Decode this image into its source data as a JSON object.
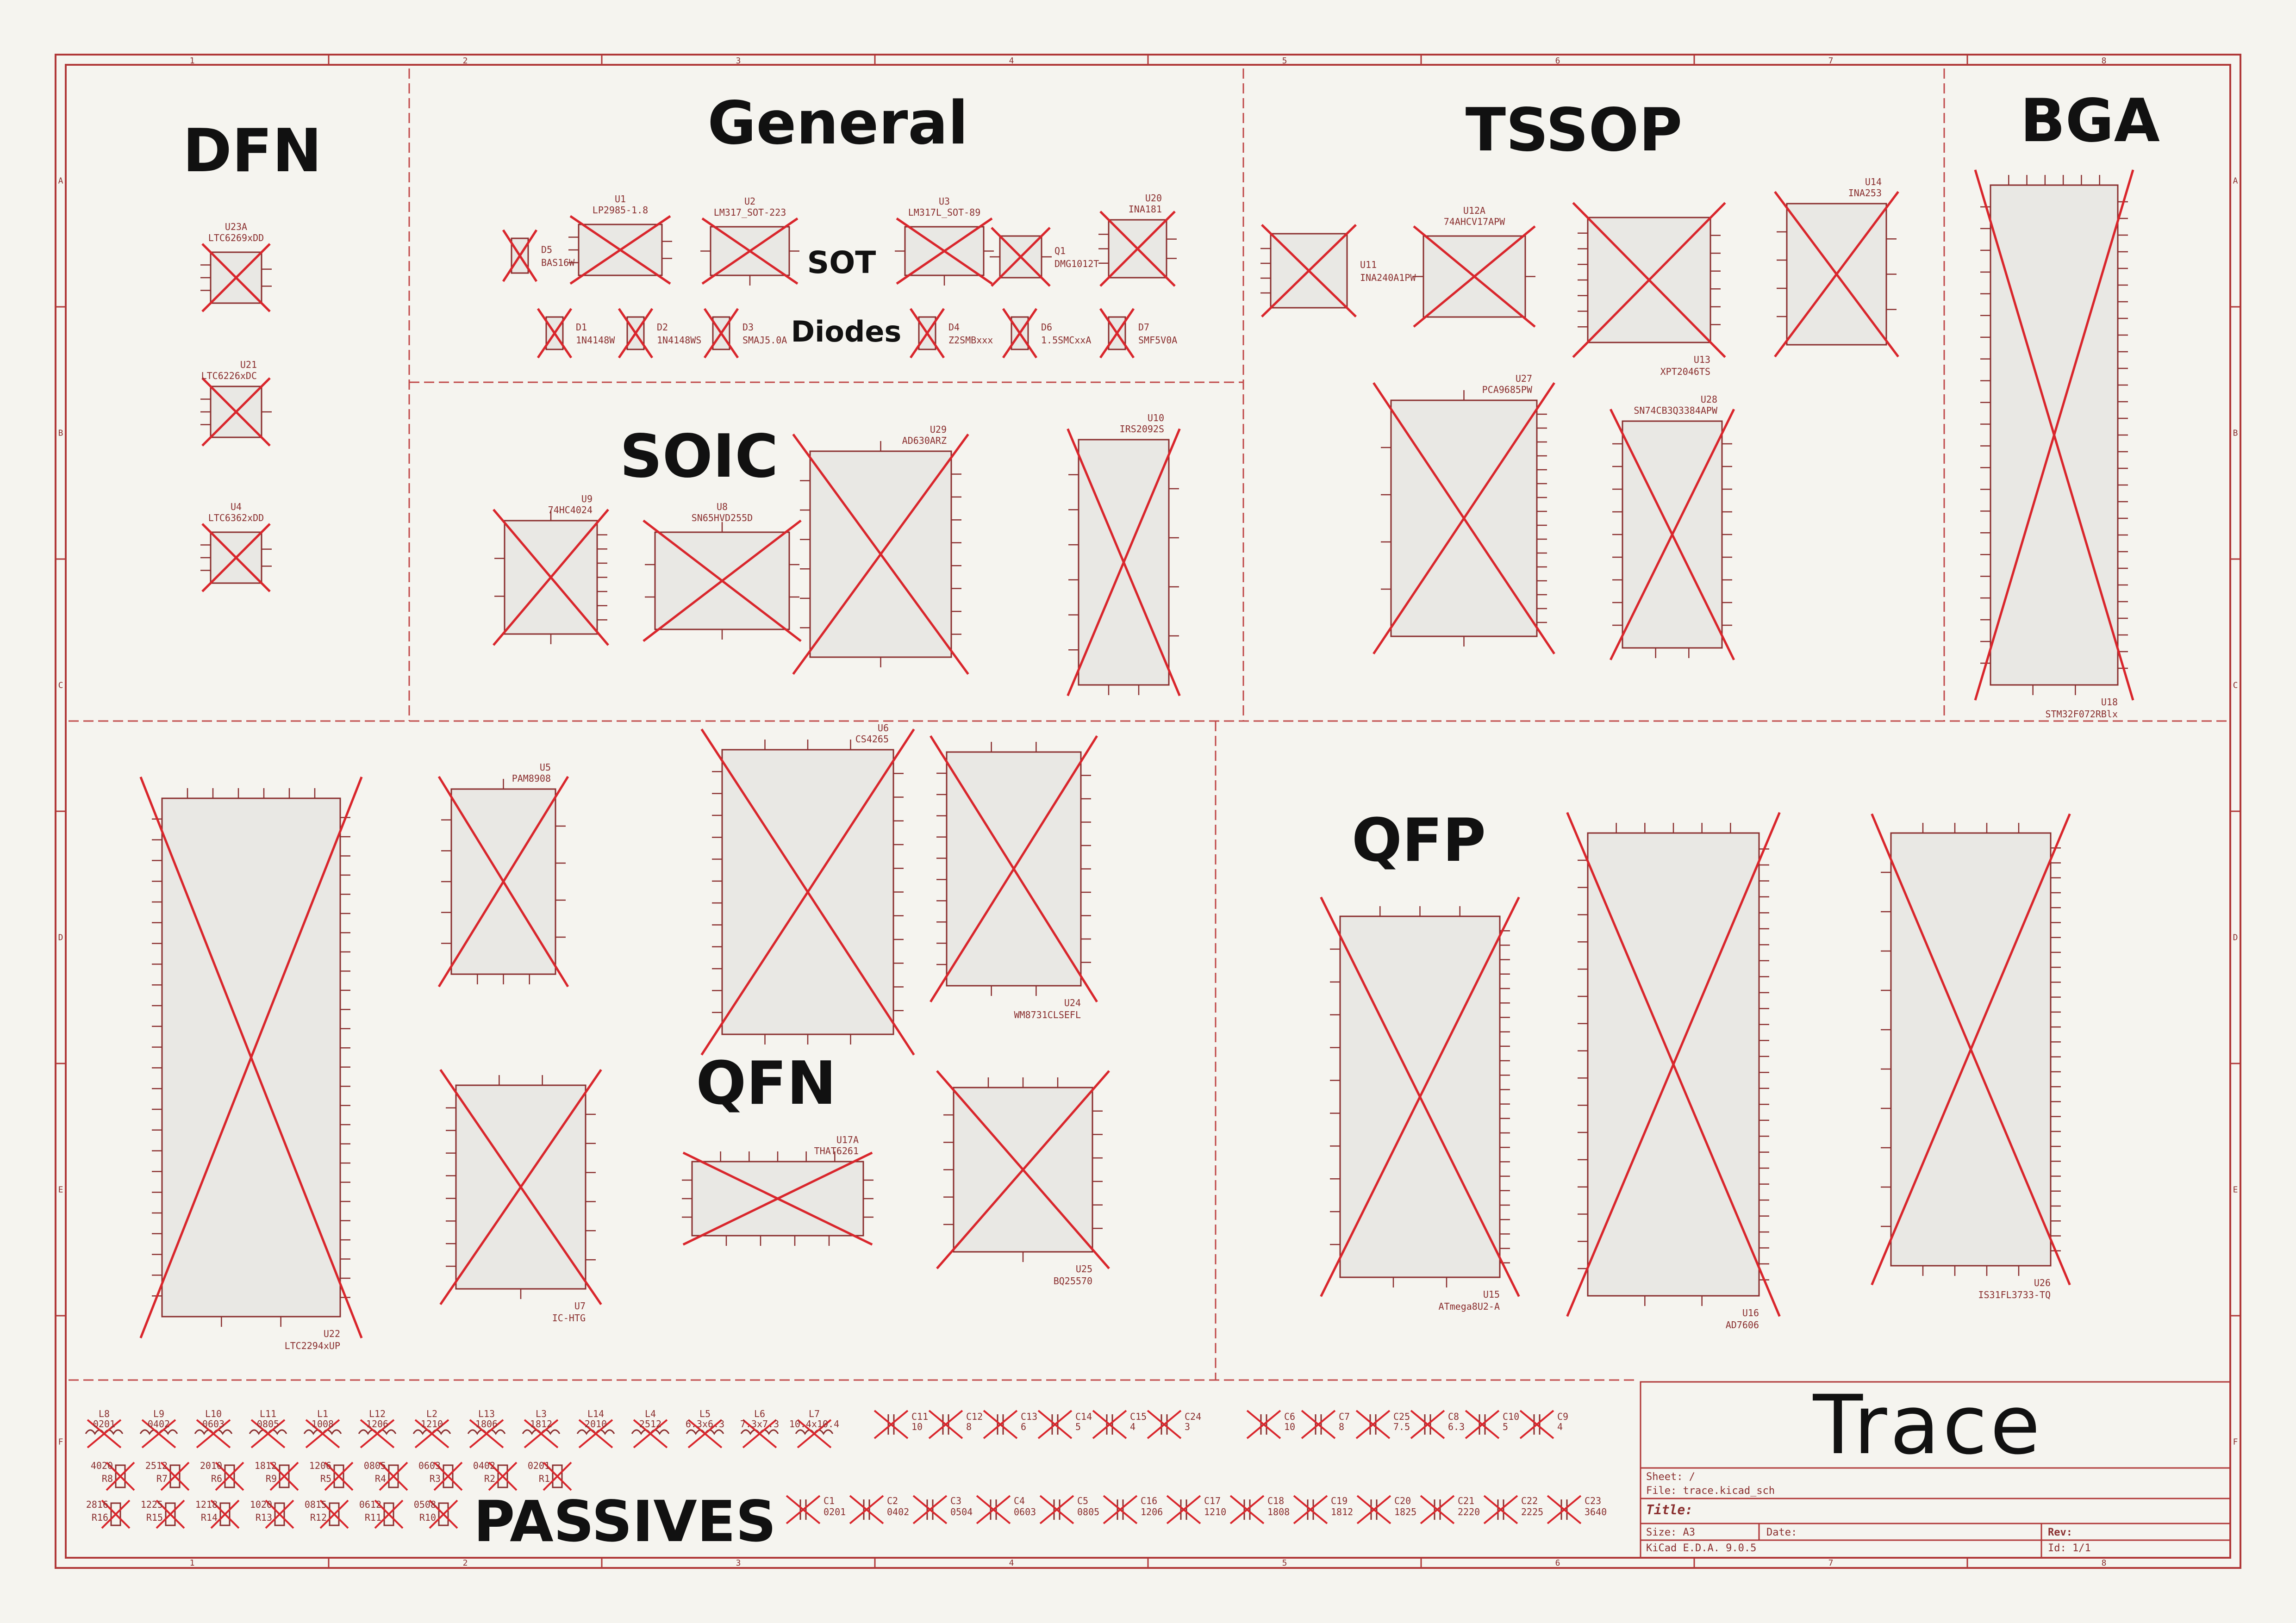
{
  "frame": {
    "columns": [
      "1",
      "2",
      "3",
      "4",
      "5",
      "6",
      "7",
      "8"
    ],
    "rows": [
      "A",
      "B",
      "C",
      "D",
      "E",
      "F"
    ],
    "border_color": "#b03838",
    "symbol_fill": "#e9e8e4",
    "cross_color": "#d9262c"
  },
  "titles": {
    "dfn": "DFN",
    "general": "General",
    "tssop": "TSSOP",
    "bga": "BGA",
    "soic": "SOIC",
    "qfp": "QFP",
    "qfn": "QFN",
    "passives": "PASSIVES",
    "sot": "SOT",
    "diodes": "Diodes"
  },
  "parts": {
    "u23a": {
      "ref": "U23A",
      "value": "LTC6269xDD"
    },
    "u21": {
      "ref": "U21",
      "value": "LTC6226xDC"
    },
    "u4": {
      "ref": "U4",
      "value": "LTC6362xDD"
    },
    "d5": {
      "ref": "D5",
      "value": "BAS16W"
    },
    "u1": {
      "ref": "U1",
      "value": "LP2985-1.8"
    },
    "u2": {
      "ref": "U2",
      "value": "LM317_SOT-223"
    },
    "u3": {
      "ref": "U3",
      "value": "LM317L_SOT-89"
    },
    "q1": {
      "ref": "Q1",
      "value": "DMG1012T"
    },
    "u20": {
      "ref": "U20",
      "value": "INA181"
    },
    "d1": {
      "ref": "D1",
      "value": "1N4148W"
    },
    "d2": {
      "ref": "D2",
      "value": "1N4148WS"
    },
    "d3": {
      "ref": "D3",
      "value": "SMAJ5.0A"
    },
    "d4": {
      "ref": "D4",
      "value": "Z2SMBxxx"
    },
    "d6": {
      "ref": "D6",
      "value": "1.5SMCxxA"
    },
    "d7": {
      "ref": "D7",
      "value": "SMF5V0A"
    },
    "u11": {
      "ref": "U11",
      "value": "INA240A1PW"
    },
    "u12a": {
      "ref": "U12A",
      "value": "74AHCV17APW"
    },
    "u13": {
      "ref": "U13",
      "value": "XPT2046TS"
    },
    "u14": {
      "ref": "U14",
      "value": "INA253"
    },
    "u27": {
      "ref": "U27",
      "value": "PCA9685PW"
    },
    "u28": {
      "ref": "U28",
      "value": "SN74CB3Q3384APW"
    },
    "u18": {
      "ref": "U18",
      "value": "STM32F072RBlx"
    },
    "u9": {
      "ref": "U9",
      "value": "74HC4024"
    },
    "u8": {
      "ref": "U8",
      "value": "SN65HVD255D"
    },
    "u29": {
      "ref": "U29",
      "value": "AD630ARZ"
    },
    "u10": {
      "ref": "U10",
      "value": "IRS2092S"
    },
    "u22": {
      "ref": "U22",
      "value": "LTC2294xUP"
    },
    "u5": {
      "ref": "U5",
      "value": "PAM8908"
    },
    "u6": {
      "ref": "U6",
      "value": "CS4265"
    },
    "u24": {
      "ref": "U24",
      "value": "WM8731CLSEFL"
    },
    "u7": {
      "ref": "U7",
      "value": "IC-HTG"
    },
    "u17a": {
      "ref": "U17A",
      "value": "THAT6261"
    },
    "u25": {
      "ref": "U25",
      "value": "BQ25570"
    },
    "u15": {
      "ref": "U15",
      "value": "ATmega8U2-A"
    },
    "u16": {
      "ref": "U16",
      "value": "AD7606"
    },
    "u26": {
      "ref": "U26",
      "value": "IS31FL3733-TQ"
    }
  },
  "inductors": [
    {
      "ref": "L8",
      "size": "0201"
    },
    {
      "ref": "L9",
      "size": "0402"
    },
    {
      "ref": "L10",
      "size": "0603"
    },
    {
      "ref": "L11",
      "size": "0805"
    },
    {
      "ref": "L1",
      "size": "1008"
    },
    {
      "ref": "L12",
      "size": "1206"
    },
    {
      "ref": "L2",
      "size": "1210"
    },
    {
      "ref": "L13",
      "size": "1806"
    },
    {
      "ref": "L3",
      "size": "1812"
    },
    {
      "ref": "L14",
      "size": "2010"
    },
    {
      "ref": "L4",
      "size": "2512"
    },
    {
      "ref": "L5",
      "size": "6.3x6.3"
    },
    {
      "ref": "L6",
      "size": "7.3x7.3"
    },
    {
      "ref": "L7",
      "size": "10.4x10.4"
    }
  ],
  "caps_top": [
    {
      "ref": "C11",
      "size": "10"
    },
    {
      "ref": "C12",
      "size": "8"
    },
    {
      "ref": "C13",
      "size": "6"
    },
    {
      "ref": "C14",
      "size": "5"
    },
    {
      "ref": "C15",
      "size": "4"
    },
    {
      "ref": "C24",
      "size": "3"
    },
    {
      "ref": "C6",
      "size": "10"
    },
    {
      "ref": "C7",
      "size": "8"
    },
    {
      "ref": "C25",
      "size": "7.5"
    },
    {
      "ref": "C8",
      "size": "6.3"
    },
    {
      "ref": "C10",
      "size": "5"
    },
    {
      "ref": "C9",
      "size": "4"
    }
  ],
  "resistors_a": [
    {
      "ref": "R8",
      "size": "4020"
    },
    {
      "ref": "R7",
      "size": "2512"
    },
    {
      "ref": "R6",
      "size": "2010"
    },
    {
      "ref": "R9",
      "size": "1812"
    },
    {
      "ref": "R5",
      "size": "1206"
    },
    {
      "ref": "R4",
      "size": "0805"
    },
    {
      "ref": "R3",
      "size": "0603"
    },
    {
      "ref": "R2",
      "size": "0402"
    },
    {
      "ref": "R1",
      "size": "0201"
    }
  ],
  "resistors_b": [
    {
      "ref": "R16",
      "size": "2816"
    },
    {
      "ref": "R15",
      "size": "1225"
    },
    {
      "ref": "R14",
      "size": "1218"
    },
    {
      "ref": "R13",
      "size": "1020"
    },
    {
      "ref": "R12",
      "size": "0815"
    },
    {
      "ref": "R11",
      "size": "0612"
    },
    {
      "ref": "R10",
      "size": "0508"
    }
  ],
  "caps_bottom": [
    {
      "ref": "C1",
      "size": "0201"
    },
    {
      "ref": "C2",
      "size": "0402"
    },
    {
      "ref": "C3",
      "size": "0504"
    },
    {
      "ref": "C4",
      "size": "0603"
    },
    {
      "ref": "C5",
      "size": "0805"
    },
    {
      "ref": "C16",
      "size": "1206"
    },
    {
      "ref": "C17",
      "size": "1210"
    },
    {
      "ref": "C18",
      "size": "1808"
    },
    {
      "ref": "C19",
      "size": "1812"
    },
    {
      "ref": "C20",
      "size": "1825"
    },
    {
      "ref": "C21",
      "size": "2220"
    },
    {
      "ref": "C22",
      "size": "2225"
    },
    {
      "ref": "C23",
      "size": "3640"
    }
  ],
  "title_block": {
    "project": "Trace",
    "sheet": "Sheet: /",
    "file": "File: trace.kicad_sch",
    "title_label": "Title:",
    "size": "Size: A3",
    "date": "Date:",
    "rev": "Rev:",
    "tool": "KiCad E.D.A. 9.0.5",
    "id": "Id: 1/1"
  }
}
